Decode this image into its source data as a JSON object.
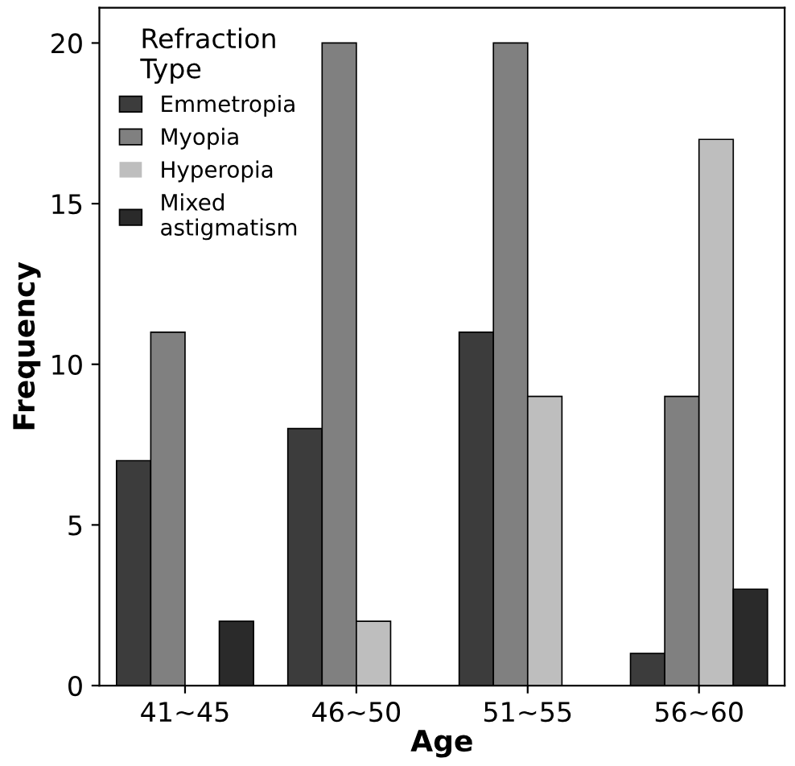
{
  "chart_data": {
    "type": "bar",
    "xlabel": "Age",
    "ylabel": "Frequency",
    "legend_title": "Refraction\nType",
    "categories": [
      "41~45",
      "46~50",
      "51~55",
      "56~60"
    ],
    "series": [
      {
        "name": "Emmetropia",
        "color": "#3c3c3c",
        "values": [
          7,
          8,
          11,
          1
        ]
      },
      {
        "name": "Myopia",
        "color": "#808080",
        "values": [
          11,
          20,
          20,
          9
        ]
      },
      {
        "name": "Hyperopia",
        "color": "#bebebe",
        "values": [
          0,
          2,
          9,
          17
        ]
      },
      {
        "name": "Mixed\nastigmatism",
        "color": "#2a2a2a",
        "values": [
          2,
          0,
          0,
          3
        ]
      }
    ],
    "ylim": [
      0,
      21.1
    ],
    "yticks": [
      0,
      5,
      10,
      15,
      20
    ],
    "grid": false,
    "legend": "top left"
  }
}
